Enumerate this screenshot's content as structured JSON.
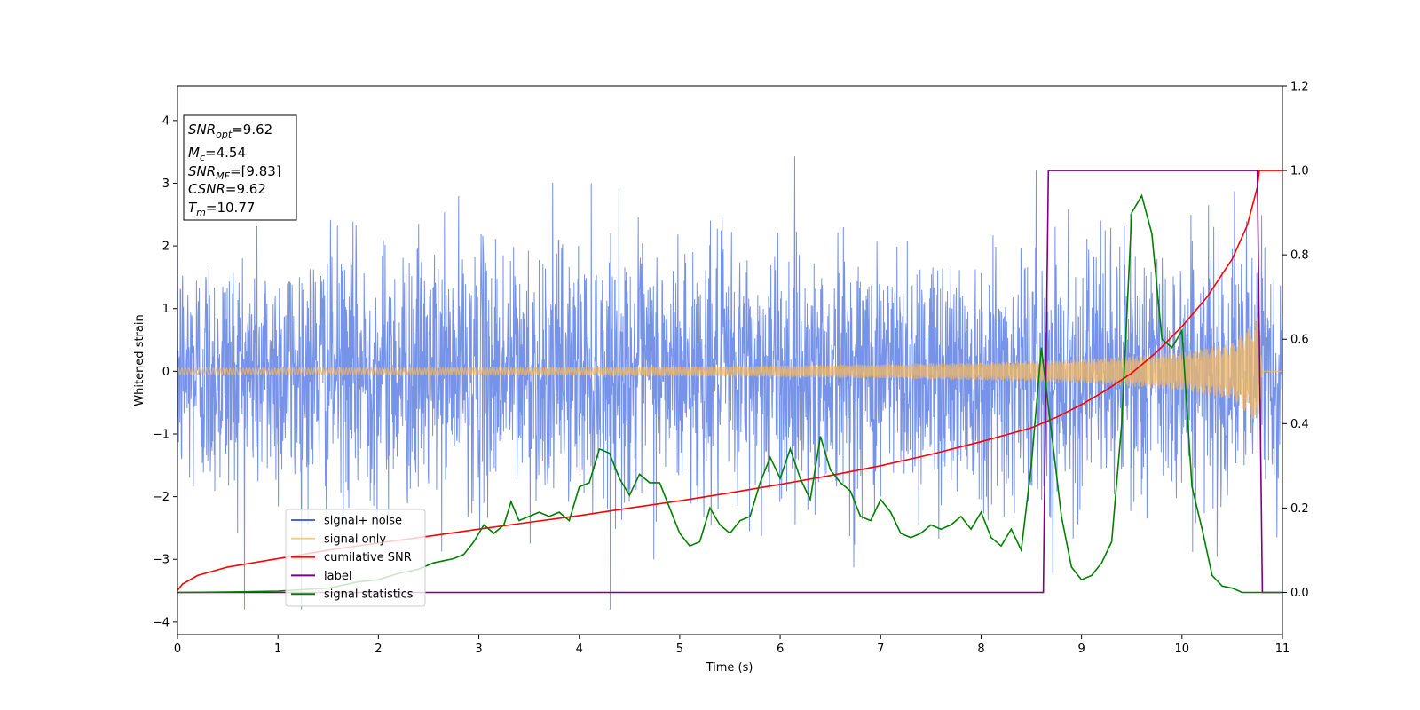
{
  "chart_data": {
    "type": "line",
    "xlabel": "Time (s)",
    "ylabel": "Whitened strain",
    "xlim": [
      0,
      11
    ],
    "ylim_left": [
      -4.2,
      4.55
    ],
    "ylim_right": [
      -0.1,
      1.2
    ],
    "x_ticks": [
      "0",
      "1",
      "2",
      "3",
      "4",
      "5",
      "6",
      "7",
      "8",
      "9",
      "10",
      "11"
    ],
    "y_ticks_left": [
      "−4",
      "−3",
      "−2",
      "−1",
      "0",
      "1",
      "2",
      "3",
      "4"
    ],
    "y_ticks_right": [
      "0.0",
      "0.2",
      "0.4",
      "0.6",
      "0.8",
      "1.0",
      "1.2"
    ],
    "grid": false,
    "legend_position": "lower-left",
    "info_box": {
      "lines": [
        {
          "base": "SNR",
          "sub": "opt",
          "value": "=9.62"
        },
        {
          "base": "M",
          "sub": "c",
          "value": "=4.54"
        },
        {
          "base": "SNR",
          "sub": "MF",
          "value": "=[9.83]"
        },
        {
          "base": "CSNR",
          "sub": "",
          "value": "=9.62"
        },
        {
          "base": "T",
          "sub": "m",
          "value": "=10.77"
        }
      ]
    },
    "series": [
      {
        "name": "signal+ noise",
        "axis": "left",
        "color": "#4169e1",
        "style": "noise",
        "description_values": {
          "approx_std": 1.0,
          "min": -3.8,
          "max": 4.2
        }
      },
      {
        "name": "signal only",
        "axis": "left",
        "color": "#f4b860",
        "style": "chirp",
        "amplitude_points": [
          [
            0,
            0.05
          ],
          [
            2,
            0.055
          ],
          [
            4,
            0.065
          ],
          [
            6,
            0.09
          ],
          [
            8,
            0.14
          ],
          [
            9,
            0.19
          ],
          [
            10,
            0.3
          ],
          [
            10.5,
            0.45
          ],
          [
            10.7,
            0.75
          ],
          [
            10.77,
            0.9
          ],
          [
            10.8,
            0.0
          ],
          [
            11,
            0.0
          ]
        ]
      },
      {
        "name": "cumilative SNR",
        "axis": "right",
        "color": "#ff0000",
        "style": "line",
        "x": [
          0,
          0.05,
          0.2,
          0.5,
          1,
          1.5,
          2,
          2.5,
          3,
          3.5,
          4,
          4.5,
          5,
          5.5,
          6,
          6.5,
          7,
          7.5,
          8,
          8.5,
          8.75,
          9,
          9.25,
          9.5,
          9.75,
          10,
          10.25,
          10.5,
          10.65,
          10.75,
          10.77,
          11
        ],
        "y": [
          0.005,
          0.02,
          0.04,
          0.06,
          0.08,
          0.1,
          0.117,
          0.133,
          0.15,
          0.166,
          0.182,
          0.2,
          0.217,
          0.236,
          0.256,
          0.277,
          0.3,
          0.327,
          0.357,
          0.39,
          0.415,
          0.445,
          0.48,
          0.52,
          0.57,
          0.63,
          0.7,
          0.79,
          0.87,
          0.96,
          1.0,
          1.0
        ]
      },
      {
        "name": "label",
        "axis": "right",
        "color": "#800080",
        "style": "line",
        "x": [
          0,
          8.62,
          8.67,
          10.75,
          10.8,
          11
        ],
        "y": [
          0.0,
          0.0,
          1.0,
          1.0,
          0.0,
          0.0
        ]
      },
      {
        "name": "signal statistics",
        "axis": "right",
        "color": "#008000",
        "style": "line",
        "x": [
          0,
          0.5,
          1.0,
          1.5,
          1.8,
          2.0,
          2.2,
          2.4,
          2.55,
          2.65,
          2.75,
          2.85,
          2.95,
          3.05,
          3.15,
          3.25,
          3.32,
          3.4,
          3.5,
          3.6,
          3.7,
          3.8,
          3.9,
          4.0,
          4.1,
          4.2,
          4.3,
          4.4,
          4.5,
          4.6,
          4.7,
          4.8,
          4.9,
          5.0,
          5.1,
          5.2,
          5.3,
          5.4,
          5.5,
          5.6,
          5.7,
          5.8,
          5.9,
          6.0,
          6.1,
          6.2,
          6.3,
          6.4,
          6.5,
          6.6,
          6.7,
          6.8,
          6.9,
          7.0,
          7.1,
          7.2,
          7.3,
          7.4,
          7.5,
          7.6,
          7.7,
          7.8,
          7.9,
          8.0,
          8.1,
          8.2,
          8.3,
          8.4,
          8.5,
          8.6,
          8.7,
          8.8,
          8.9,
          9.0,
          9.1,
          9.2,
          9.3,
          9.4,
          9.5,
          9.6,
          9.7,
          9.8,
          9.9,
          10.0,
          10.1,
          10.2,
          10.3,
          10.4,
          10.5,
          10.6,
          10.7,
          10.8,
          10.9,
          11.0
        ],
        "y": [
          0.0,
          0.001,
          0.003,
          0.01,
          0.025,
          0.03,
          0.045,
          0.055,
          0.07,
          0.075,
          0.08,
          0.09,
          0.12,
          0.16,
          0.14,
          0.16,
          0.215,
          0.17,
          0.18,
          0.19,
          0.18,
          0.19,
          0.17,
          0.25,
          0.26,
          0.34,
          0.33,
          0.27,
          0.23,
          0.28,
          0.26,
          0.26,
          0.2,
          0.14,
          0.11,
          0.12,
          0.2,
          0.16,
          0.14,
          0.17,
          0.18,
          0.26,
          0.32,
          0.27,
          0.34,
          0.27,
          0.22,
          0.37,
          0.29,
          0.26,
          0.24,
          0.18,
          0.17,
          0.22,
          0.19,
          0.14,
          0.13,
          0.14,
          0.16,
          0.15,
          0.16,
          0.18,
          0.15,
          0.19,
          0.13,
          0.11,
          0.15,
          0.1,
          0.3,
          0.58,
          0.38,
          0.18,
          0.06,
          0.03,
          0.04,
          0.07,
          0.12,
          0.4,
          0.9,
          0.94,
          0.85,
          0.6,
          0.58,
          0.62,
          0.25,
          0.15,
          0.04,
          0.015,
          0.01,
          0.0,
          0.0,
          0.0,
          0.0,
          0.0
        ]
      }
    ]
  }
}
